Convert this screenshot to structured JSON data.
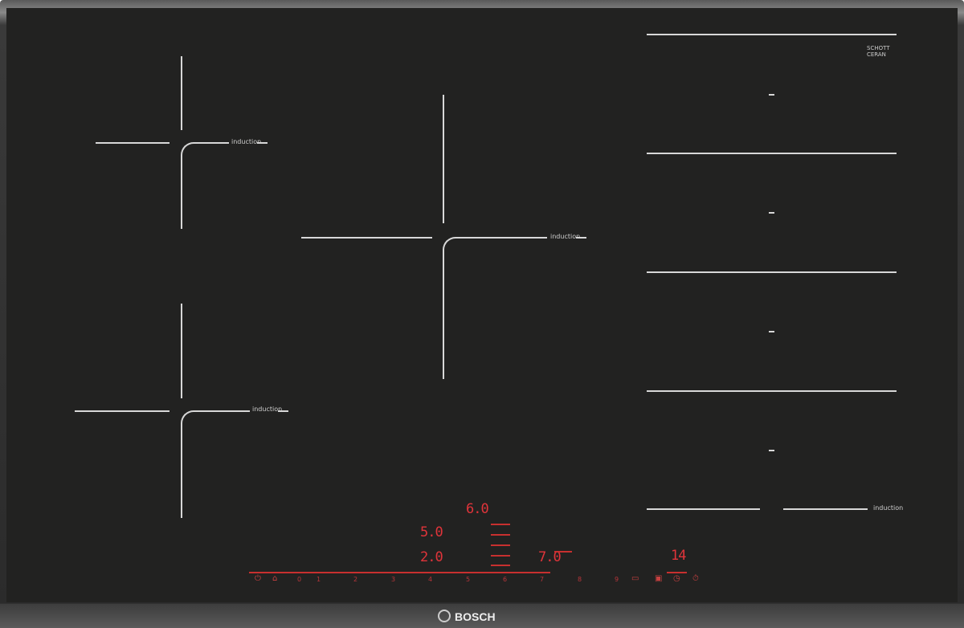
{
  "brand": "BOSCH",
  "glass_logo": "SCHOTT CERAN",
  "zone_label": "induction",
  "displays": {
    "top": "6.0",
    "upper": "5.0",
    "lower": "2.0",
    "right": "7.0",
    "timer": "14"
  },
  "slider": [
    "0",
    "1",
    "2",
    "3",
    "4",
    "5",
    "6",
    "7",
    "8",
    "9"
  ],
  "icons": [
    "power-icon",
    "childlock-icon",
    "timer-icon",
    "stopwatch-icon"
  ],
  "colors": {
    "glass": "#222221",
    "display": "#e0343a",
    "markings": "#d8d8d8"
  }
}
